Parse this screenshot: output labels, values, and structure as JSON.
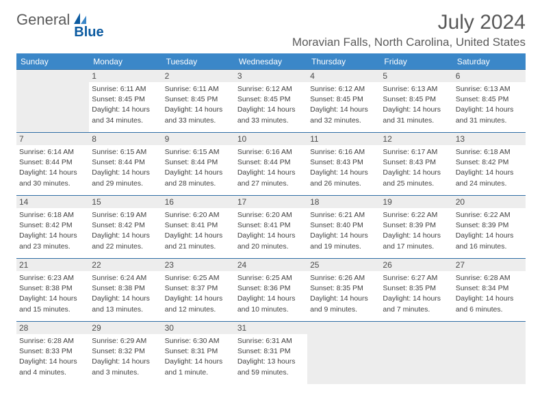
{
  "brand": {
    "part1": "General",
    "part2": "Blue"
  },
  "title": "July 2024",
  "location": "Moravian Falls, North Carolina, United States",
  "day_names": [
    "Sunday",
    "Monday",
    "Tuesday",
    "Wednesday",
    "Thursday",
    "Friday",
    "Saturday"
  ],
  "colors": {
    "header_bg": "#3b87c8",
    "header_text": "#ffffff",
    "border": "#2e6da4",
    "daynum_bg": "#ededed",
    "body_text": "#404040",
    "title_text": "#585858"
  },
  "weeks": [
    [
      {
        "empty": true
      },
      {
        "n": "1",
        "sunrise": "Sunrise: 6:11 AM",
        "sunset": "Sunset: 8:45 PM",
        "day1": "Daylight: 14 hours",
        "day2": "and 34 minutes."
      },
      {
        "n": "2",
        "sunrise": "Sunrise: 6:11 AM",
        "sunset": "Sunset: 8:45 PM",
        "day1": "Daylight: 14 hours",
        "day2": "and 33 minutes."
      },
      {
        "n": "3",
        "sunrise": "Sunrise: 6:12 AM",
        "sunset": "Sunset: 8:45 PM",
        "day1": "Daylight: 14 hours",
        "day2": "and 33 minutes."
      },
      {
        "n": "4",
        "sunrise": "Sunrise: 6:12 AM",
        "sunset": "Sunset: 8:45 PM",
        "day1": "Daylight: 14 hours",
        "day2": "and 32 minutes."
      },
      {
        "n": "5",
        "sunrise": "Sunrise: 6:13 AM",
        "sunset": "Sunset: 8:45 PM",
        "day1": "Daylight: 14 hours",
        "day2": "and 31 minutes."
      },
      {
        "n": "6",
        "sunrise": "Sunrise: 6:13 AM",
        "sunset": "Sunset: 8:45 PM",
        "day1": "Daylight: 14 hours",
        "day2": "and 31 minutes."
      }
    ],
    [
      {
        "n": "7",
        "sunrise": "Sunrise: 6:14 AM",
        "sunset": "Sunset: 8:44 PM",
        "day1": "Daylight: 14 hours",
        "day2": "and 30 minutes."
      },
      {
        "n": "8",
        "sunrise": "Sunrise: 6:15 AM",
        "sunset": "Sunset: 8:44 PM",
        "day1": "Daylight: 14 hours",
        "day2": "and 29 minutes."
      },
      {
        "n": "9",
        "sunrise": "Sunrise: 6:15 AM",
        "sunset": "Sunset: 8:44 PM",
        "day1": "Daylight: 14 hours",
        "day2": "and 28 minutes."
      },
      {
        "n": "10",
        "sunrise": "Sunrise: 6:16 AM",
        "sunset": "Sunset: 8:44 PM",
        "day1": "Daylight: 14 hours",
        "day2": "and 27 minutes."
      },
      {
        "n": "11",
        "sunrise": "Sunrise: 6:16 AM",
        "sunset": "Sunset: 8:43 PM",
        "day1": "Daylight: 14 hours",
        "day2": "and 26 minutes."
      },
      {
        "n": "12",
        "sunrise": "Sunrise: 6:17 AM",
        "sunset": "Sunset: 8:43 PM",
        "day1": "Daylight: 14 hours",
        "day2": "and 25 minutes."
      },
      {
        "n": "13",
        "sunrise": "Sunrise: 6:18 AM",
        "sunset": "Sunset: 8:42 PM",
        "day1": "Daylight: 14 hours",
        "day2": "and 24 minutes."
      }
    ],
    [
      {
        "n": "14",
        "sunrise": "Sunrise: 6:18 AM",
        "sunset": "Sunset: 8:42 PM",
        "day1": "Daylight: 14 hours",
        "day2": "and 23 minutes."
      },
      {
        "n": "15",
        "sunrise": "Sunrise: 6:19 AM",
        "sunset": "Sunset: 8:42 PM",
        "day1": "Daylight: 14 hours",
        "day2": "and 22 minutes."
      },
      {
        "n": "16",
        "sunrise": "Sunrise: 6:20 AM",
        "sunset": "Sunset: 8:41 PM",
        "day1": "Daylight: 14 hours",
        "day2": "and 21 minutes."
      },
      {
        "n": "17",
        "sunrise": "Sunrise: 6:20 AM",
        "sunset": "Sunset: 8:41 PM",
        "day1": "Daylight: 14 hours",
        "day2": "and 20 minutes."
      },
      {
        "n": "18",
        "sunrise": "Sunrise: 6:21 AM",
        "sunset": "Sunset: 8:40 PM",
        "day1": "Daylight: 14 hours",
        "day2": "and 19 minutes."
      },
      {
        "n": "19",
        "sunrise": "Sunrise: 6:22 AM",
        "sunset": "Sunset: 8:39 PM",
        "day1": "Daylight: 14 hours",
        "day2": "and 17 minutes."
      },
      {
        "n": "20",
        "sunrise": "Sunrise: 6:22 AM",
        "sunset": "Sunset: 8:39 PM",
        "day1": "Daylight: 14 hours",
        "day2": "and 16 minutes."
      }
    ],
    [
      {
        "n": "21",
        "sunrise": "Sunrise: 6:23 AM",
        "sunset": "Sunset: 8:38 PM",
        "day1": "Daylight: 14 hours",
        "day2": "and 15 minutes."
      },
      {
        "n": "22",
        "sunrise": "Sunrise: 6:24 AM",
        "sunset": "Sunset: 8:38 PM",
        "day1": "Daylight: 14 hours",
        "day2": "and 13 minutes."
      },
      {
        "n": "23",
        "sunrise": "Sunrise: 6:25 AM",
        "sunset": "Sunset: 8:37 PM",
        "day1": "Daylight: 14 hours",
        "day2": "and 12 minutes."
      },
      {
        "n": "24",
        "sunrise": "Sunrise: 6:25 AM",
        "sunset": "Sunset: 8:36 PM",
        "day1": "Daylight: 14 hours",
        "day2": "and 10 minutes."
      },
      {
        "n": "25",
        "sunrise": "Sunrise: 6:26 AM",
        "sunset": "Sunset: 8:35 PM",
        "day1": "Daylight: 14 hours",
        "day2": "and 9 minutes."
      },
      {
        "n": "26",
        "sunrise": "Sunrise: 6:27 AM",
        "sunset": "Sunset: 8:35 PM",
        "day1": "Daylight: 14 hours",
        "day2": "and 7 minutes."
      },
      {
        "n": "27",
        "sunrise": "Sunrise: 6:28 AM",
        "sunset": "Sunset: 8:34 PM",
        "day1": "Daylight: 14 hours",
        "day2": "and 6 minutes."
      }
    ],
    [
      {
        "n": "28",
        "sunrise": "Sunrise: 6:28 AM",
        "sunset": "Sunset: 8:33 PM",
        "day1": "Daylight: 14 hours",
        "day2": "and 4 minutes."
      },
      {
        "n": "29",
        "sunrise": "Sunrise: 6:29 AM",
        "sunset": "Sunset: 8:32 PM",
        "day1": "Daylight: 14 hours",
        "day2": "and 3 minutes."
      },
      {
        "n": "30",
        "sunrise": "Sunrise: 6:30 AM",
        "sunset": "Sunset: 8:31 PM",
        "day1": "Daylight: 14 hours",
        "day2": "and 1 minute."
      },
      {
        "n": "31",
        "sunrise": "Sunrise: 6:31 AM",
        "sunset": "Sunset: 8:31 PM",
        "day1": "Daylight: 13 hours",
        "day2": "and 59 minutes."
      },
      {
        "empty": true
      },
      {
        "empty": true
      },
      {
        "empty": true
      }
    ]
  ]
}
